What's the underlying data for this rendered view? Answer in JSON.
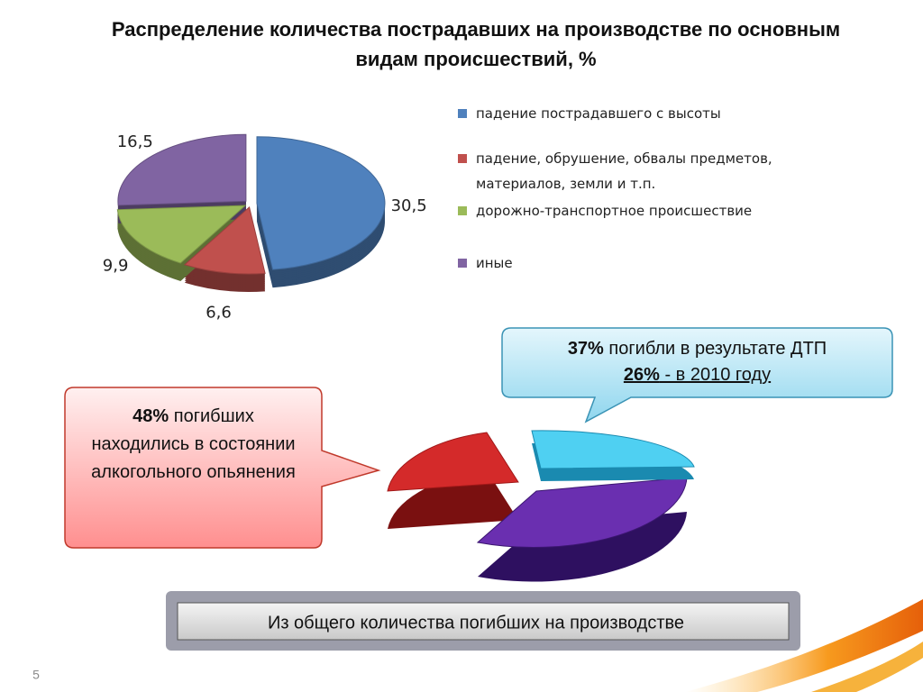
{
  "chart_data": {
    "type": "pie",
    "title": "Распределение количества пострадавших на производстве по основным видам происшествий, %",
    "categories": [
      "падение пострадавшего с высоты",
      "падение, обрушение, обвалы предметов, материалов, земли и т.п.",
      "дорожно-транспортное происшествие",
      "иные"
    ],
    "values": [
      30.5,
      6.6,
      9.9,
      16.5
    ],
    "value_labels": [
      "30,5",
      "6,6",
      "9,9",
      "16,5"
    ],
    "colors": [
      "#4f81bd",
      "#c0504d",
      "#9bbb59",
      "#8064a2"
    ]
  },
  "callout_alcohol": {
    "percent": "48%",
    "text": "погибших находились в состоянии алкогольного опьянения"
  },
  "callout_traffic": {
    "percent": "37%",
    "text": "погибли в результате ДТП",
    "percent_2010": "26%",
    "text_2010": " - в 2010 году"
  },
  "footer": "Из общего количества погибших на производстве",
  "page_number": "5"
}
